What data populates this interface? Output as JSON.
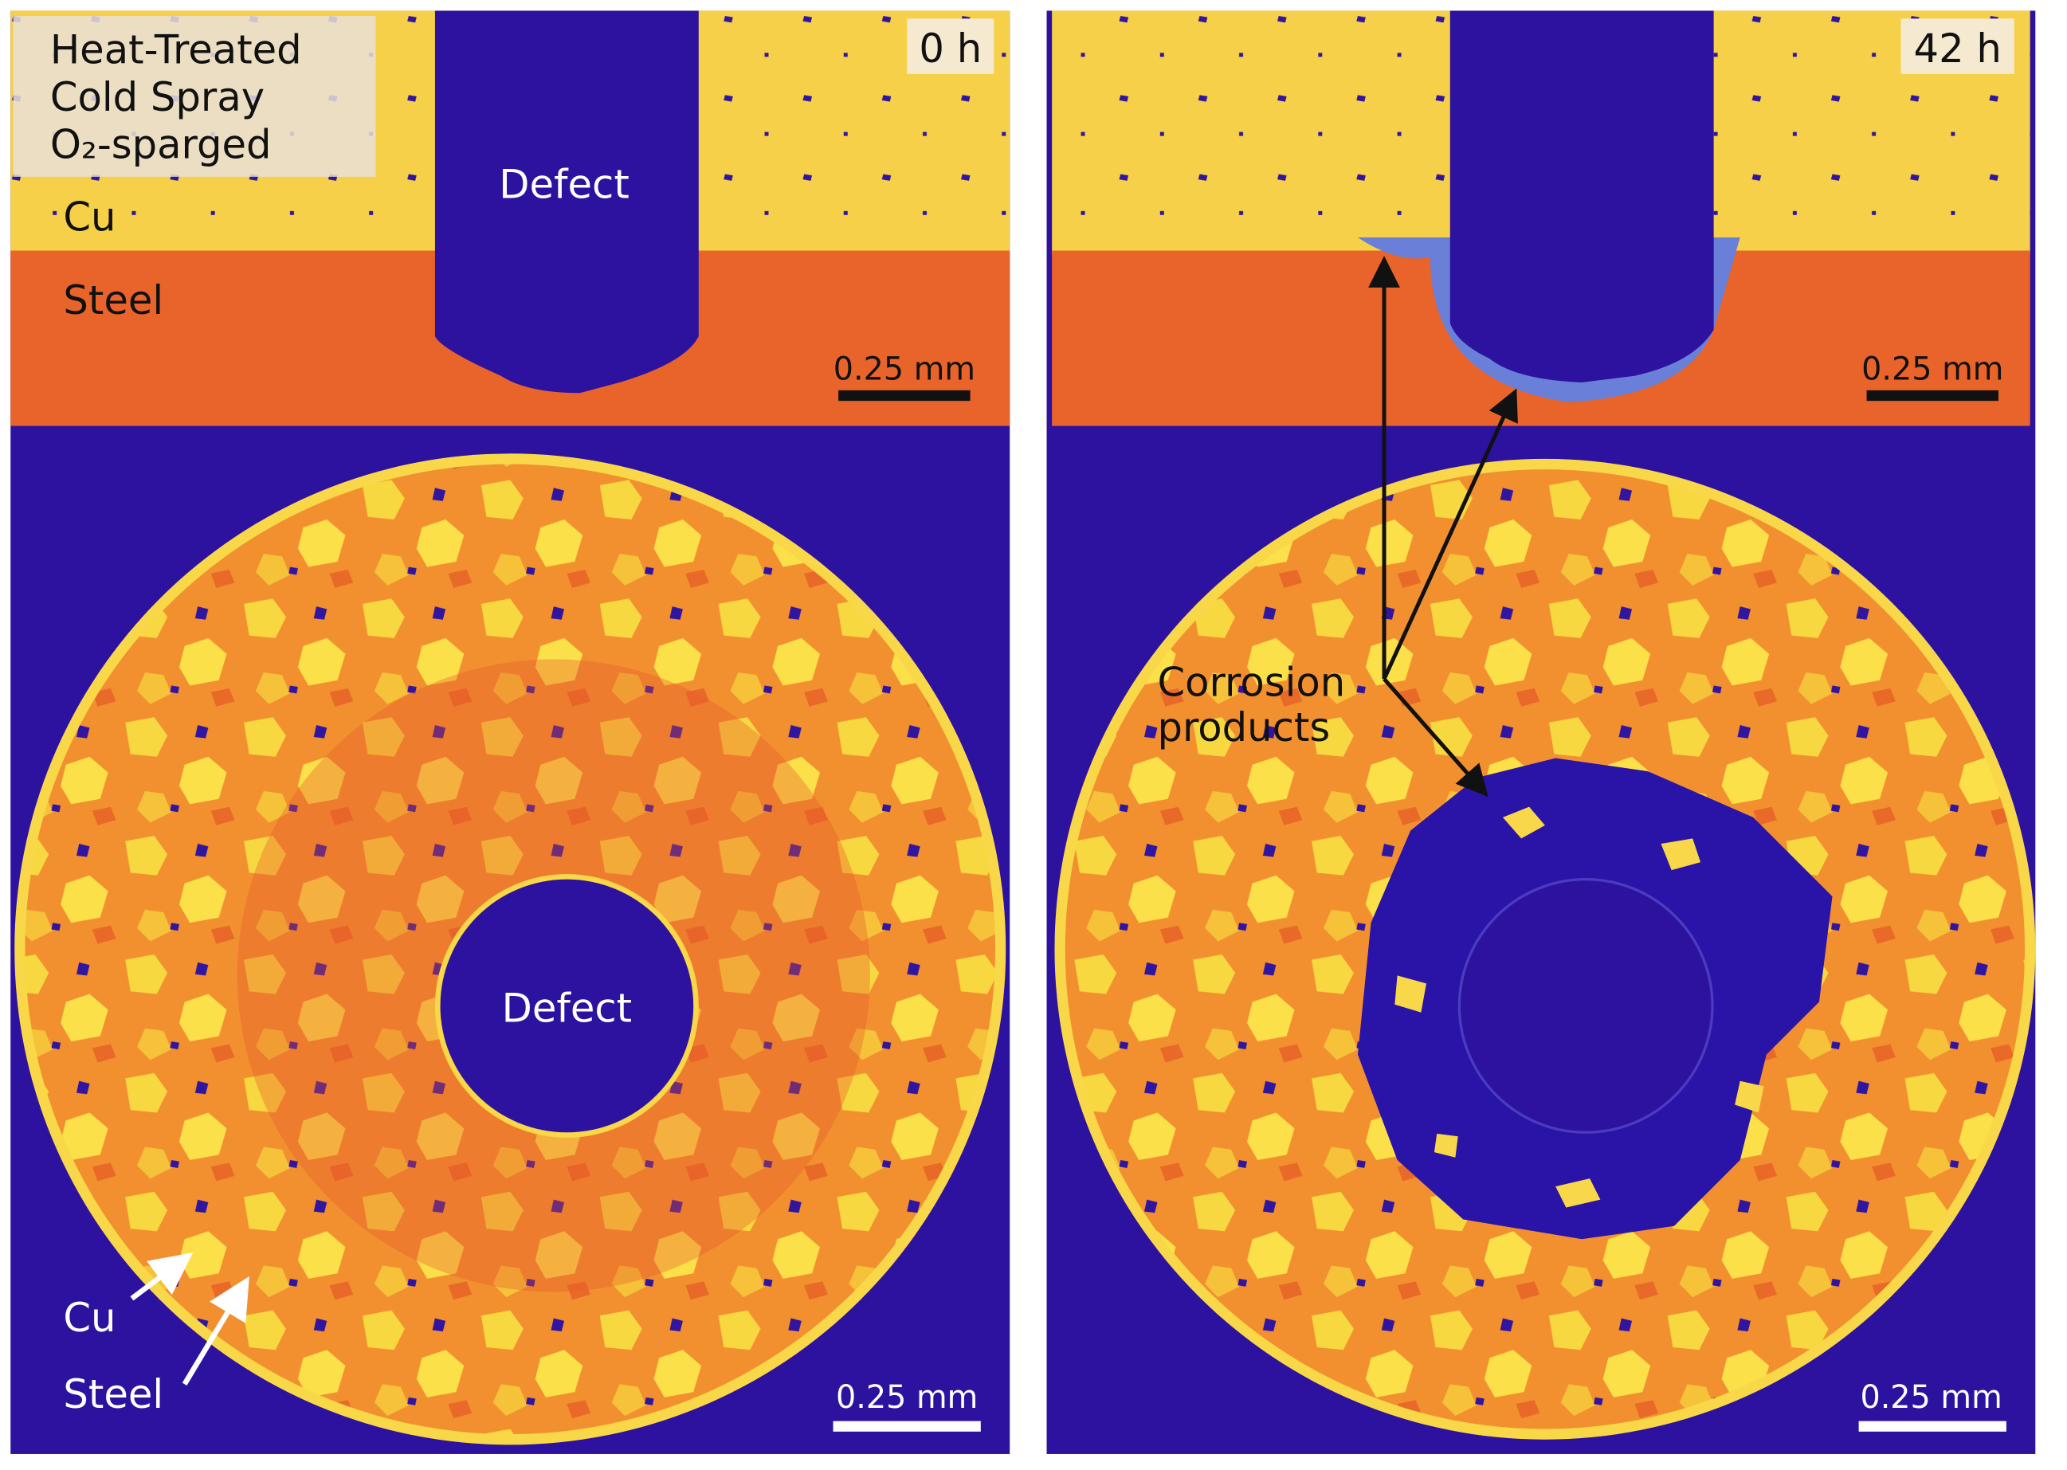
{
  "panels": [
    {
      "time": "0 h",
      "label_box": [
        "Heat-Treated",
        "Cold Spray",
        "O₂-sparged"
      ],
      "top": {
        "cu": "Cu",
        "steel": "Steel",
        "defect": "Defect",
        "scale_bar": "0.25 mm"
      },
      "bottom": {
        "defect": "Defect",
        "arrow_labels": [
          "Cu",
          "Steel"
        ],
        "scale_bar": "0.25 mm"
      }
    },
    {
      "time": "42 h",
      "top": {
        "scale_bar": "0.25 mm"
      },
      "annotation": [
        "Corrosion",
        "products"
      ],
      "bottom": {
        "scale_bar": "0.25 mm"
      }
    }
  ]
}
